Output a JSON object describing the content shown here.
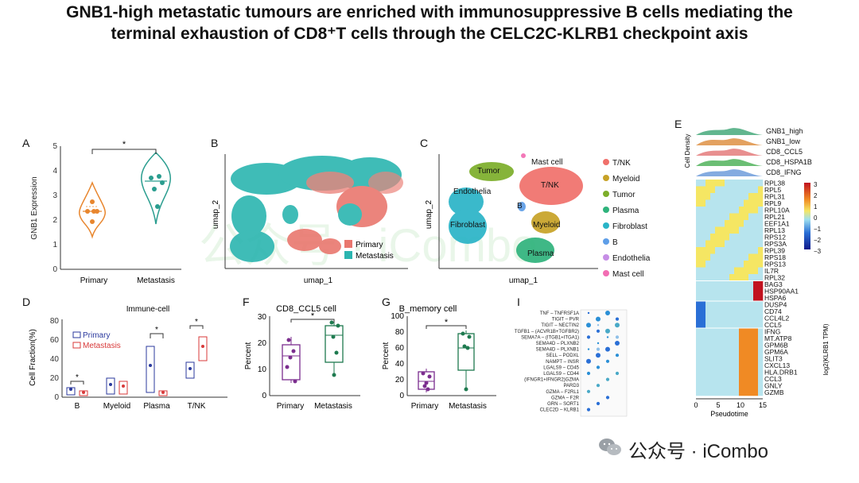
{
  "title": {
    "line1": "GNB1-high metastatic tumours are enriched with immunosuppressive B cells mediating the",
    "line2": "terminal exhaustion of CD8⁺T cells through the CELC2C-KLRB1 checkpoint axis"
  },
  "panelA": {
    "label": "A",
    "ylabel": "GNB1 Expression",
    "yticks": [
      "0",
      "1",
      "2",
      "3",
      "4",
      "5"
    ],
    "categories": [
      "Primary",
      "Metastasis"
    ],
    "sig": "*",
    "colors": {
      "Primary": "#e8862e",
      "Metastasis": "#2a9d8f"
    }
  },
  "panelB": {
    "label": "B",
    "xlabel": "umap_1",
    "ylabel": "umap_2",
    "legend": [
      "Primary",
      "Metastasis"
    ],
    "colors": [
      "#e9776e",
      "#2bb5b0"
    ]
  },
  "panelC": {
    "label": "C",
    "xlabel": "umap_1",
    "ylabel": "umap_2",
    "clusters": [
      "Mast cell",
      "Tumor",
      "T/NK",
      "Endothelia",
      "B",
      "Myeloid",
      "Fibroblast",
      "Plasma"
    ],
    "legend": [
      "T/NK",
      "Myeloid",
      "Tumor",
      "Plasma",
      "Fibroblast",
      "B",
      "Endothelia",
      "Mast cell"
    ],
    "colors": {
      "T/NK": "#f0706b",
      "Myeloid": "#c7a227",
      "Tumor": "#7cae2a",
      "Plasma": "#2fb37c",
      "Fibroblast": "#2ab4c7",
      "B": "#5e9ee8",
      "Endothelia": "#c68ee6",
      "Mast cell": "#f26db3"
    }
  },
  "panelD": {
    "label": "D",
    "title": "Immune-cell",
    "ylabel": "Cell Fraction(%)",
    "yticks": [
      "0",
      "20",
      "40",
      "60",
      "80"
    ],
    "categories": [
      "B",
      "Myeloid",
      "Plasma",
      "T/NK"
    ],
    "legend": [
      "Primary",
      "Metastasis"
    ],
    "sig": "*",
    "colors": {
      "Primary": "#2b3a9e",
      "Metastasis": "#d83a3a"
    }
  },
  "panelF": {
    "label": "F",
    "title": "CD8_CCL5 cell",
    "ylabel": "Percent",
    "yticks": [
      "0",
      "10",
      "20",
      "30"
    ],
    "categories": [
      "Primary",
      "Metastasis"
    ],
    "sig": "*",
    "colors": {
      "Primary": "#7b2d8e",
      "Metastasis": "#1e7a4f"
    }
  },
  "panelG": {
    "label": "G",
    "title": "B_memory cell",
    "ylabel": "Percent",
    "yticks": [
      "0",
      "20",
      "40",
      "60",
      "80",
      "100"
    ],
    "categories": [
      "Primary",
      "Metastasis"
    ],
    "sig": "*",
    "colors": {
      "Primary": "#7b2d8e",
      "Metastasis": "#1e7a4f"
    }
  },
  "panelI": {
    "label": "I",
    "rows": [
      "TNF – TNFRSF1A",
      "TIGIT – PVR",
      "TIGIT – NECTIN2",
      "TGFB1 – (ACVR1B+TGFBR2)",
      "SEMA7A – (ITGB1+ITGA1)",
      "SEMA4D – PLXNB2",
      "SEMA4D – PLXNB1",
      "SELL – PODXL",
      "NAMPT – INSR",
      "LGALS9 – CD45",
      "LGALS9 – CD44",
      "(IFNGR1+IFNGR2)GZMA",
      "PARD3",
      "GZMA – F2RL1",
      "GZMA – F2R",
      "GRN – SORT1",
      "CLEC2D – KLRB1"
    ]
  },
  "panelE": {
    "label": "E",
    "density_ylabel": "Cell Density",
    "density_series": [
      "GNB1_high",
      "GNB1_low",
      "CD8_CCL5",
      "CD8_HSPA1B",
      "CD8_IFNG"
    ],
    "density_colors": [
      "#2e9e6a",
      "#d9822b",
      "#e06a6a",
      "#39a845",
      "#5b8fd6"
    ],
    "genes": [
      "RPL38",
      "RPL5",
      "RPL31",
      "RPL9",
      "RPL10A",
      "RPL21",
      "EEF1A1",
      "RPL13",
      "RPS12",
      "RPS3A",
      "RPL39",
      "RPS18",
      "RPS13",
      "IL7R",
      "RPL32",
      "BAG3",
      "HSP90AA1",
      "HSPA6",
      "DUSP4",
      "CD74",
      "CCL4L2",
      "CCL5",
      "IFNG",
      "MT.ATP8",
      "GPM6B",
      "GPM6A",
      "SLIT3",
      "CXCL13",
      "HLA.DRB1",
      "CCL3",
      "GNLY",
      "GZMB"
    ],
    "colorbar_ticks": [
      "3",
      "2",
      "1",
      "0",
      "−1",
      "−2",
      "−3"
    ],
    "colorbar_label": "log2(KLRB1 TPM)",
    "xlabel": "Pseudotime",
    "xticks": [
      "0",
      "5",
      "10",
      "15"
    ]
  },
  "watermark": {
    "text": "公众号 · iCombo",
    "faint": "公众号 · iCombo"
  }
}
